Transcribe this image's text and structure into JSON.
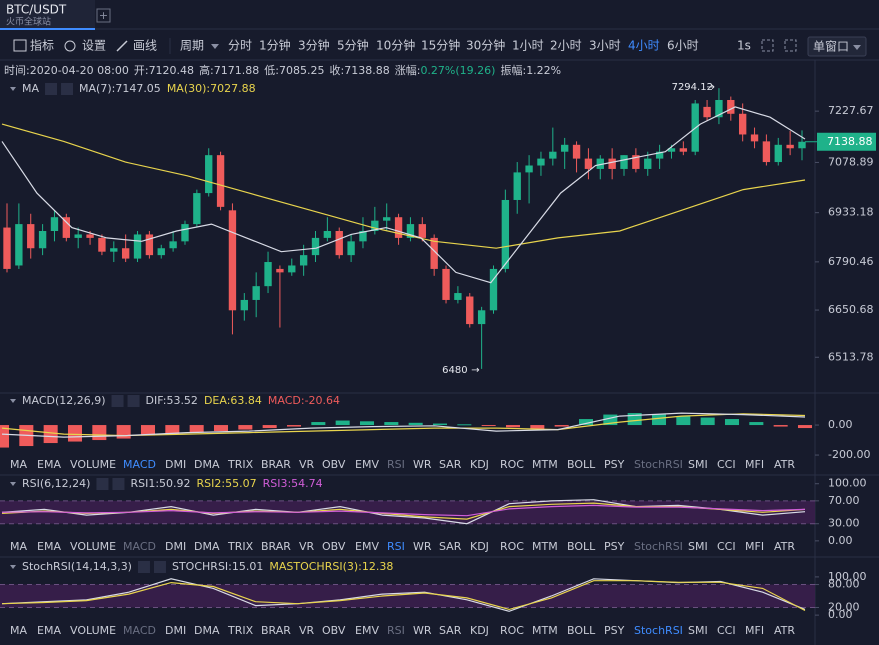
{
  "header": {
    "pair": "BTC/USDT",
    "exchange": "火币全球站"
  },
  "toolbar": {
    "indicator": "指标",
    "settings": "设置",
    "draw": "画线",
    "period": "周期",
    "periods": [
      "分时",
      "1分钟",
      "3分钟",
      "5分钟",
      "10分钟",
      "15分钟",
      "30分钟",
      "1小时",
      "2小时",
      "3小时",
      "4小时",
      "6小时"
    ],
    "active_period": 10,
    "speed": "1s",
    "window": "单窗口"
  },
  "info": [
    {
      "label": "时间:",
      "value": "2020-04-20 08:00"
    },
    {
      "label": "开:",
      "value": "7120.48"
    },
    {
      "label": "高:",
      "value": "7171.88"
    },
    {
      "label": "低:",
      "value": "7085.25"
    },
    {
      "label": "收:",
      "value": "7138.88"
    },
    {
      "label": "涨幅:",
      "value": "0.27%(19.26)",
      "color": "#1fb28a"
    },
    {
      "label": "振幅:",
      "value": "1.22%"
    }
  ],
  "tabs": [
    "MA",
    "EMA",
    "VOLUME",
    "MACD",
    "DMI",
    "DMA",
    "TRIX",
    "BRAR",
    "VR",
    "OBV",
    "EMV",
    "RSI",
    "WR",
    "SAR",
    "KDJ",
    "ROC",
    "MTM",
    "BOLL",
    "PSY",
    "StochRSI",
    "SMI",
    "CCI",
    "MFI",
    "ATR"
  ],
  "main": {
    "legend": [
      {
        "text": "MA",
        "color": "#c8cbd6"
      },
      {
        "text": "MA(7):7147.05",
        "color": "#c8cbd6"
      },
      {
        "text": "MA(30):7027.88",
        "color": "#e8d44d"
      }
    ],
    "ylim": [
      6413,
      7318
    ],
    "yticks": [
      7227.67,
      7078.89,
      6933.18,
      6790.46,
      6650.68,
      6513.78
    ],
    "last_price": 7138.88,
    "up_color": "#1fb28a",
    "down_color": "#ef5b5b",
    "high_label": 7294.12,
    "low_label": 6480,
    "candles": [
      [
        6890,
        6960,
        6760,
        6770
      ],
      [
        6780,
        6960,
        6770,
        6900
      ],
      [
        6900,
        6930,
        6800,
        6830
      ],
      [
        6830,
        6900,
        6810,
        6880
      ],
      [
        6880,
        6940,
        6850,
        6920
      ],
      [
        6920,
        6930,
        6850,
        6860
      ],
      [
        6860,
        6890,
        6830,
        6870
      ],
      [
        6870,
        6880,
        6840,
        6860
      ],
      [
        6860,
        6870,
        6810,
        6820
      ],
      [
        6820,
        6850,
        6790,
        6830
      ],
      [
        6830,
        6870,
        6790,
        6800
      ],
      [
        6800,
        6880,
        6790,
        6870
      ],
      [
        6870,
        6880,
        6800,
        6810
      ],
      [
        6810,
        6840,
        6800,
        6830
      ],
      [
        6830,
        6880,
        6820,
        6850
      ],
      [
        6850,
        6910,
        6840,
        6900
      ],
      [
        6900,
        7000,
        6890,
        6990
      ],
      [
        6990,
        7120,
        6980,
        7100
      ],
      [
        7100,
        7110,
        6940,
        6950
      ],
      [
        6940,
        6960,
        6580,
        6650
      ],
      [
        6650,
        6700,
        6620,
        6680
      ],
      [
        6680,
        6760,
        6630,
        6720
      ],
      [
        6720,
        6820,
        6700,
        6790
      ],
      [
        6770,
        6780,
        6600,
        6760
      ],
      [
        6760,
        6800,
        6750,
        6780
      ],
      [
        6780,
        6840,
        6750,
        6810
      ],
      [
        6810,
        6880,
        6790,
        6860
      ],
      [
        6860,
        6920,
        6850,
        6880
      ],
      [
        6880,
        6890,
        6800,
        6810
      ],
      [
        6810,
        6870,
        6790,
        6850
      ],
      [
        6850,
        6920,
        6830,
        6880
      ],
      [
        6880,
        6950,
        6870,
        6910
      ],
      [
        6910,
        6960,
        6880,
        6920
      ],
      [
        6920,
        6930,
        6840,
        6860
      ],
      [
        6860,
        6920,
        6850,
        6900
      ],
      [
        6900,
        6920,
        6850,
        6860
      ],
      [
        6860,
        6870,
        6750,
        6770
      ],
      [
        6770,
        6780,
        6670,
        6680
      ],
      [
        6680,
        6720,
        6670,
        6700
      ],
      [
        6690,
        6700,
        6600,
        6610
      ],
      [
        6610,
        6660,
        6480,
        6650
      ],
      [
        6650,
        6780,
        6640,
        6770
      ],
      [
        6770,
        7000,
        6760,
        6970
      ],
      [
        6970,
        7080,
        6930,
        7050
      ],
      [
        7050,
        7100,
        6960,
        7070
      ],
      [
        7070,
        7110,
        7040,
        7090
      ],
      [
        7090,
        7180,
        7070,
        7110
      ],
      [
        7110,
        7150,
        7060,
        7130
      ],
      [
        7130,
        7140,
        7050,
        7090
      ],
      [
        7090,
        7120,
        7030,
        7060
      ],
      [
        7060,
        7100,
        7030,
        7090
      ],
      [
        7090,
        7120,
        7030,
        7060
      ],
      [
        7060,
        7100,
        7040,
        7100
      ],
      [
        7100,
        7120,
        7050,
        7060
      ],
      [
        7060,
        7110,
        7040,
        7090
      ],
      [
        7090,
        7130,
        7060,
        7110
      ],
      [
        7110,
        7130,
        7090,
        7120
      ],
      [
        7120,
        7140,
        7100,
        7110
      ],
      [
        7110,
        7260,
        7100,
        7250
      ],
      [
        7240,
        7260,
        7200,
        7210
      ],
      [
        7210,
        7294.12,
        7190,
        7260
      ],
      [
        7260,
        7270,
        7200,
        7220
      ],
      [
        7220,
        7250,
        7140,
        7160
      ],
      [
        7160,
        7180,
        7120,
        7140
      ],
      [
        7140,
        7160,
        7070,
        7080
      ],
      [
        7080,
        7150,
        7070,
        7130
      ],
      [
        7130,
        7170,
        7100,
        7120
      ],
      [
        7120,
        7171.88,
        7085.25,
        7138.88
      ]
    ],
    "ma7": {
      "color": "#d8dbe6",
      "values": [
        7140,
        6990,
        6890,
        6860,
        6850,
        6880,
        6900,
        6860,
        6820,
        6830,
        6870,
        6890,
        6860,
        6760,
        6730,
        6860,
        6990,
        7070,
        7090,
        7110,
        7190,
        7240,
        7210,
        7147
      ]
    },
    "ma30": {
      "color": "#e8d44d",
      "values": [
        7190,
        7140,
        7080,
        7040,
        6990,
        6940,
        6890,
        6850,
        6830,
        6860,
        6880,
        6940,
        7000,
        7028
      ]
    }
  },
  "macd": {
    "legend": [
      {
        "text": "MACD(12,26,9)",
        "color": "#c8cbd6"
      },
      {
        "text": "DIF:53.52",
        "color": "#c8cbd6"
      },
      {
        "text": "DEA:63.84",
        "color": "#e8d44d"
      },
      {
        "text": "MACD:-20.64",
        "color": "#ef5b5b"
      }
    ],
    "ylim": [
      -233,
      207
    ],
    "yticks": [
      {
        "value": 0,
        "label": "0.00"
      },
      {
        "value": -200,
        "label": "-200.00"
      }
    ],
    "active_tab": 3,
    "hist": [
      -150,
      -140,
      -120,
      -110,
      -100,
      -90,
      -70,
      -60,
      -50,
      -40,
      -30,
      -20,
      -10,
      20,
      30,
      25,
      20,
      15,
      10,
      5,
      -5,
      -15,
      -30,
      -10,
      40,
      70,
      80,
      70,
      60,
      50,
      40,
      20,
      -10,
      -20
    ],
    "dif": {
      "color": "#d8dbe6",
      "values": [
        -60,
        -80,
        -70,
        -50,
        -40,
        -20,
        -10,
        -5,
        -40,
        -30,
        60,
        80,
        70,
        53.52
      ]
    },
    "dea": {
      "color": "#e8d44d",
      "values": [
        -20,
        -60,
        -70,
        -60,
        -50,
        -40,
        -30,
        -20,
        -20,
        -30,
        20,
        60,
        75,
        63.84
      ]
    }
  },
  "rsi": {
    "legend": [
      {
        "text": "RSI(6,12,24)",
        "color": "#c8cbd6"
      },
      {
        "text": "RSI1:50.92",
        "color": "#c8cbd6"
      },
      {
        "text": "RSI2:55.07",
        "color": "#e8d44d"
      },
      {
        "text": "RSI3:54.74",
        "color": "#d05ed8"
      }
    ],
    "ylim": [
      -2,
      110
    ],
    "yticks": [
      {
        "value": 100,
        "label": "100.00"
      },
      {
        "value": 70,
        "label": "70.00"
      },
      {
        "value": 30,
        "label": "30.00"
      },
      {
        "value": 0,
        "label": "0.00"
      }
    ],
    "active_tab": 11,
    "lines": [
      {
        "color": "#d8dbe6",
        "values": [
          50,
          55,
          45,
          50,
          60,
          45,
          55,
          50,
          60,
          45,
          40,
          30,
          65,
          70,
          72,
          60,
          62,
          55,
          45,
          51
        ]
      },
      {
        "color": "#e8d44d",
        "values": [
          48,
          52,
          48,
          50,
          55,
          48,
          52,
          50,
          55,
          48,
          42,
          38,
          60,
          64,
          66,
          60,
          60,
          55,
          50,
          55
        ]
      },
      {
        "color": "#d05ed8",
        "values": [
          50,
          51,
          49,
          50,
          53,
          49,
          51,
          50,
          52,
          49,
          46,
          44,
          56,
          60,
          62,
          59,
          59,
          56,
          53,
          55
        ]
      }
    ]
  },
  "stochrsi": {
    "legend": [
      {
        "text": "StochRSI(14,14,3,3)",
        "color": "#c8cbd6"
      },
      {
        "text": "STOCHRSI:15.01",
        "color": "#c8cbd6"
      },
      {
        "text": "MASTOCHRSI(3):12.38",
        "color": "#e8d44d"
      }
    ],
    "ylim": [
      -18,
      139
    ],
    "yticks": [
      {
        "value": 100,
        "label": "100.00"
      },
      {
        "value": 80,
        "label": "80.00"
      },
      {
        "value": 20,
        "label": "20.00"
      },
      {
        "value": 0,
        "label": "0.00"
      }
    ],
    "active_tab": 19,
    "lines": [
      {
        "color": "#d8dbe6",
        "values": [
          30,
          35,
          40,
          60,
          95,
          70,
          25,
          30,
          40,
          55,
          60,
          40,
          10,
          50,
          95,
          90,
          85,
          88,
          60,
          15
        ]
      },
      {
        "color": "#e8d44d",
        "values": [
          30,
          33,
          38,
          55,
          85,
          75,
          35,
          30,
          38,
          50,
          58,
          45,
          15,
          45,
          90,
          90,
          86,
          86,
          70,
          12
        ]
      }
    ]
  }
}
